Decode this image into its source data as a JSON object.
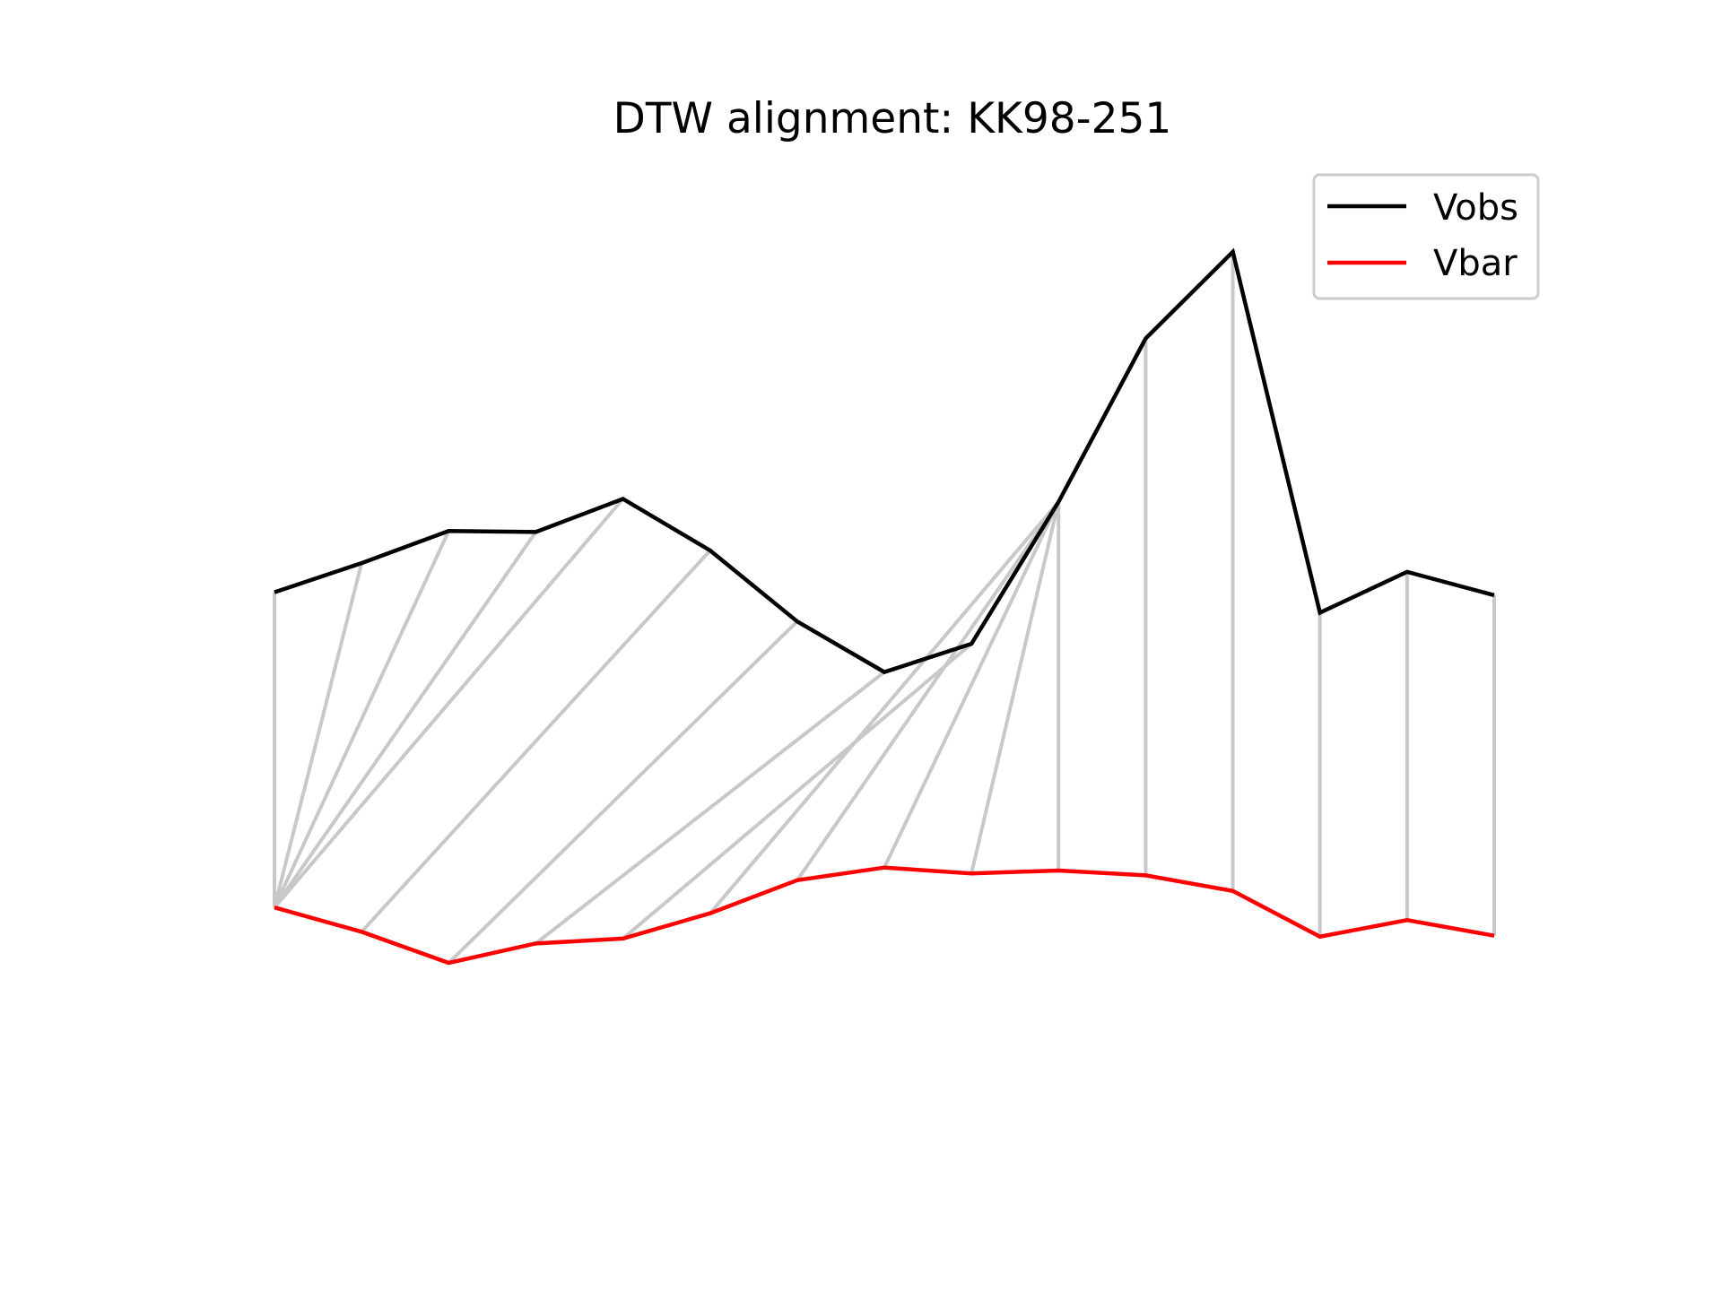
{
  "chart_data": {
    "type": "line",
    "title": "DTW alignment: KK98-251",
    "xlabel": "",
    "ylabel": "",
    "axes_visible": false,
    "grid": false,
    "legend_position": "top-right",
    "x": [
      0,
      1,
      2,
      3,
      4,
      5,
      6,
      7,
      8,
      9,
      10,
      11,
      12,
      13,
      14
    ],
    "ylim": [
      0,
      1
    ],
    "series": [
      {
        "name": "Vobs",
        "color": "#000000",
        "values": [
          0.557,
          0.587,
          0.62,
          0.619,
          0.653,
          0.6,
          0.527,
          0.475,
          0.504,
          0.65,
          0.818,
          0.907,
          0.536,
          0.578,
          0.554
        ]
      },
      {
        "name": "Vbar",
        "color": "#ff0000",
        "values": [
          0.233,
          0.208,
          0.176,
          0.196,
          0.201,
          0.227,
          0.261,
          0.274,
          0.268,
          0.271,
          0.266,
          0.25,
          0.203,
          0.22,
          0.204
        ]
      }
    ],
    "alignment_color": "#c8c8c8",
    "alignment_pairs": [
      [
        0,
        0
      ],
      [
        1,
        0
      ],
      [
        2,
        0
      ],
      [
        3,
        0
      ],
      [
        4,
        0
      ],
      [
        5,
        1
      ],
      [
        6,
        2
      ],
      [
        7,
        3
      ],
      [
        8,
        4
      ],
      [
        9,
        5
      ],
      [
        9,
        6
      ],
      [
        9,
        7
      ],
      [
        9,
        8
      ],
      [
        9,
        9
      ],
      [
        10,
        10
      ],
      [
        11,
        11
      ],
      [
        12,
        12
      ],
      [
        13,
        13
      ],
      [
        14,
        14
      ]
    ]
  }
}
